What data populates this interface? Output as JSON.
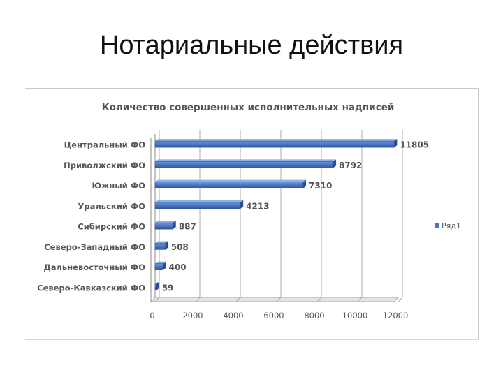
{
  "slide": {
    "title": "Нотариальные действия"
  },
  "chart_data": {
    "type": "bar",
    "orientation": "horizontal",
    "title": "Количество совершенных исполнительных надписей",
    "categories": [
      "Центральный ФО",
      "Приволжский ФО",
      "Южный ФО",
      "Уральский ФО",
      "Сибирский ФО",
      "Северо-Западный ФО",
      "Дальневосточный ФО",
      "Северо-Кавказский ФО"
    ],
    "series": [
      {
        "name": "Ряд1",
        "values": [
          11805,
          8792,
          7310,
          4213,
          887,
          508,
          400,
          59
        ],
        "color": "#4a74c4"
      }
    ],
    "xlim": [
      0,
      12000
    ],
    "xticks": [
      "0",
      "2000",
      "4000",
      "6000",
      "8000",
      "10000",
      "12000"
    ],
    "grid": true,
    "legend_position": "right"
  }
}
